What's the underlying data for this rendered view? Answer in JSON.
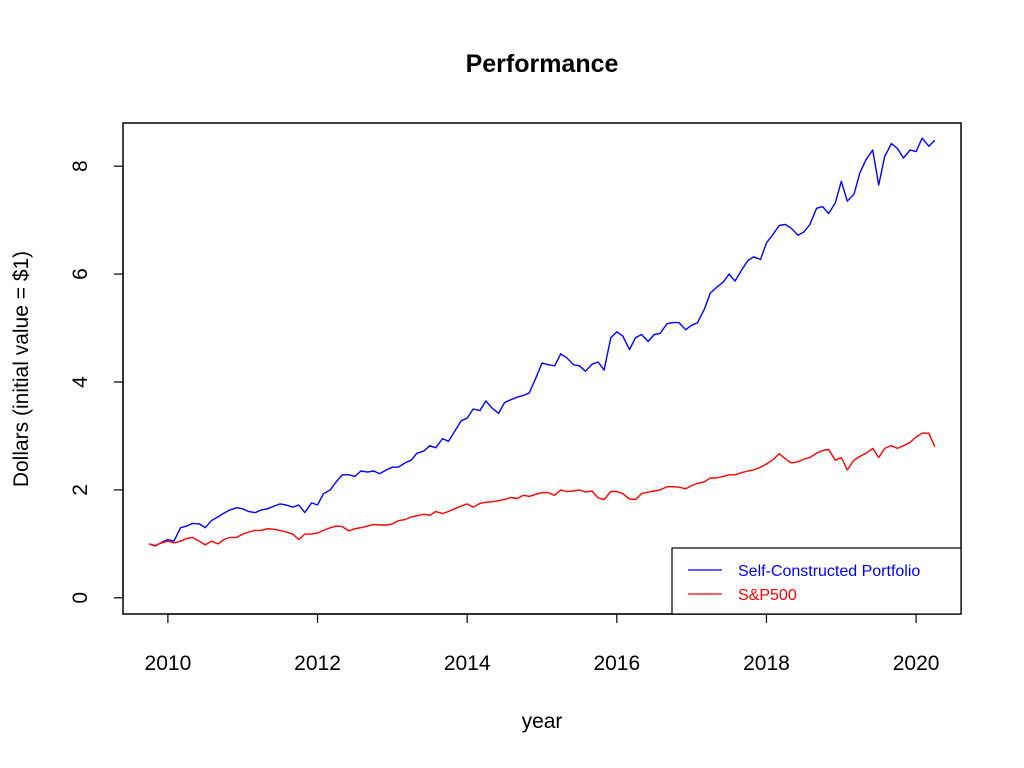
{
  "chart_data": {
    "type": "line",
    "title": "Performance",
    "xlabel": "year",
    "ylabel": "Dollars (initial value = $1)",
    "xlim": [
      2009.4,
      2020.6
    ],
    "ylim": [
      -0.3,
      8.8
    ],
    "x_ticks": [
      2010,
      2012,
      2014,
      2016,
      2018,
      2020
    ],
    "x_tick_labels": [
      "2010",
      "2012",
      "2014",
      "2016",
      "2018",
      "2020"
    ],
    "y_ticks": [
      0,
      2,
      4,
      6,
      8
    ],
    "y_tick_labels": [
      "0",
      "2",
      "4",
      "6",
      "8"
    ],
    "grid": false,
    "legend_position": "bottom-right",
    "series": [
      {
        "name": "Self-Constructed Portfolio",
        "color": "#0000ff",
        "points": [
          [
            2009.75,
            1.0
          ],
          [
            2009.83,
            0.96
          ],
          [
            2009.92,
            1.03
          ],
          [
            2010.0,
            1.08
          ],
          [
            2010.08,
            1.05
          ],
          [
            2010.17,
            1.3
          ],
          [
            2010.25,
            1.33
          ],
          [
            2010.33,
            1.38
          ],
          [
            2010.42,
            1.37
          ],
          [
            2010.5,
            1.3
          ],
          [
            2010.58,
            1.43
          ],
          [
            2010.67,
            1.5
          ],
          [
            2010.75,
            1.57
          ],
          [
            2010.83,
            1.63
          ],
          [
            2010.92,
            1.67
          ],
          [
            2011.0,
            1.65
          ],
          [
            2011.08,
            1.6
          ],
          [
            2011.17,
            1.58
          ],
          [
            2011.25,
            1.63
          ],
          [
            2011.33,
            1.65
          ],
          [
            2011.42,
            1.7
          ],
          [
            2011.5,
            1.74
          ],
          [
            2011.58,
            1.72
          ],
          [
            2011.67,
            1.68
          ],
          [
            2011.75,
            1.72
          ],
          [
            2011.83,
            1.58
          ],
          [
            2011.92,
            1.76
          ],
          [
            2012.0,
            1.72
          ],
          [
            2012.08,
            1.93
          ],
          [
            2012.17,
            2.0
          ],
          [
            2012.25,
            2.15
          ],
          [
            2012.33,
            2.28
          ],
          [
            2012.42,
            2.28
          ],
          [
            2012.5,
            2.25
          ],
          [
            2012.58,
            2.35
          ],
          [
            2012.67,
            2.33
          ],
          [
            2012.75,
            2.35
          ],
          [
            2012.83,
            2.3
          ],
          [
            2012.92,
            2.37
          ],
          [
            2013.0,
            2.42
          ],
          [
            2013.08,
            2.42
          ],
          [
            2013.17,
            2.5
          ],
          [
            2013.25,
            2.55
          ],
          [
            2013.33,
            2.68
          ],
          [
            2013.42,
            2.72
          ],
          [
            2013.5,
            2.82
          ],
          [
            2013.58,
            2.78
          ],
          [
            2013.67,
            2.95
          ],
          [
            2013.75,
            2.9
          ],
          [
            2013.83,
            3.08
          ],
          [
            2013.92,
            3.28
          ],
          [
            2014.0,
            3.33
          ],
          [
            2014.08,
            3.5
          ],
          [
            2014.17,
            3.47
          ],
          [
            2014.25,
            3.65
          ],
          [
            2014.33,
            3.52
          ],
          [
            2014.42,
            3.42
          ],
          [
            2014.5,
            3.62
          ],
          [
            2014.58,
            3.67
          ],
          [
            2014.67,
            3.72
          ],
          [
            2014.75,
            3.75
          ],
          [
            2014.83,
            3.8
          ],
          [
            2014.92,
            4.08
          ],
          [
            2015.0,
            4.35
          ],
          [
            2015.08,
            4.32
          ],
          [
            2015.17,
            4.3
          ],
          [
            2015.25,
            4.52
          ],
          [
            2015.33,
            4.45
          ],
          [
            2015.42,
            4.32
          ],
          [
            2015.5,
            4.3
          ],
          [
            2015.58,
            4.2
          ],
          [
            2015.67,
            4.33
          ],
          [
            2015.75,
            4.37
          ],
          [
            2015.83,
            4.22
          ],
          [
            2015.92,
            4.82
          ],
          [
            2016.0,
            4.93
          ],
          [
            2016.08,
            4.85
          ],
          [
            2016.17,
            4.6
          ],
          [
            2016.25,
            4.82
          ],
          [
            2016.33,
            4.88
          ],
          [
            2016.42,
            4.75
          ],
          [
            2016.5,
            4.88
          ],
          [
            2016.58,
            4.9
          ],
          [
            2016.67,
            5.08
          ],
          [
            2016.75,
            5.1
          ],
          [
            2016.83,
            5.1
          ],
          [
            2016.92,
            4.97
          ],
          [
            2017.0,
            5.05
          ],
          [
            2017.08,
            5.1
          ],
          [
            2017.17,
            5.35
          ],
          [
            2017.25,
            5.65
          ],
          [
            2017.33,
            5.75
          ],
          [
            2017.42,
            5.85
          ],
          [
            2017.5,
            6.0
          ],
          [
            2017.58,
            5.87
          ],
          [
            2017.67,
            6.08
          ],
          [
            2017.75,
            6.25
          ],
          [
            2017.83,
            6.32
          ],
          [
            2017.92,
            6.27
          ],
          [
            2018.0,
            6.58
          ],
          [
            2018.08,
            6.72
          ],
          [
            2018.17,
            6.9
          ],
          [
            2018.25,
            6.92
          ],
          [
            2018.33,
            6.85
          ],
          [
            2018.42,
            6.72
          ],
          [
            2018.5,
            6.78
          ],
          [
            2018.58,
            6.92
          ],
          [
            2018.67,
            7.22
          ],
          [
            2018.75,
            7.25
          ],
          [
            2018.83,
            7.12
          ],
          [
            2018.92,
            7.32
          ],
          [
            2019.0,
            7.72
          ],
          [
            2019.08,
            7.35
          ],
          [
            2019.17,
            7.48
          ],
          [
            2019.25,
            7.88
          ],
          [
            2019.33,
            8.12
          ],
          [
            2019.42,
            8.3
          ],
          [
            2019.5,
            7.65
          ],
          [
            2019.58,
            8.18
          ],
          [
            2019.67,
            8.42
          ],
          [
            2019.75,
            8.33
          ],
          [
            2019.83,
            8.15
          ],
          [
            2019.92,
            8.3
          ],
          [
            2020.0,
            8.27
          ],
          [
            2020.08,
            8.52
          ],
          [
            2020.17,
            8.37
          ],
          [
            2020.25,
            8.48
          ]
        ]
      },
      {
        "name": "S&P500",
        "color": "#ff0000",
        "points": [
          [
            2009.75,
            1.0
          ],
          [
            2009.83,
            0.97
          ],
          [
            2009.92,
            1.02
          ],
          [
            2010.0,
            1.05
          ],
          [
            2010.08,
            1.02
          ],
          [
            2010.17,
            1.05
          ],
          [
            2010.25,
            1.1
          ],
          [
            2010.33,
            1.12
          ],
          [
            2010.42,
            1.05
          ],
          [
            2010.5,
            0.98
          ],
          [
            2010.58,
            1.05
          ],
          [
            2010.67,
            1.0
          ],
          [
            2010.75,
            1.08
          ],
          [
            2010.83,
            1.12
          ],
          [
            2010.92,
            1.12
          ],
          [
            2011.0,
            1.18
          ],
          [
            2011.08,
            1.22
          ],
          [
            2011.17,
            1.25
          ],
          [
            2011.25,
            1.25
          ],
          [
            2011.33,
            1.28
          ],
          [
            2011.42,
            1.27
          ],
          [
            2011.5,
            1.25
          ],
          [
            2011.58,
            1.22
          ],
          [
            2011.67,
            1.18
          ],
          [
            2011.75,
            1.08
          ],
          [
            2011.83,
            1.18
          ],
          [
            2011.92,
            1.18
          ],
          [
            2012.0,
            1.2
          ],
          [
            2012.08,
            1.25
          ],
          [
            2012.17,
            1.3
          ],
          [
            2012.25,
            1.33
          ],
          [
            2012.33,
            1.32
          ],
          [
            2012.42,
            1.24
          ],
          [
            2012.5,
            1.28
          ],
          [
            2012.58,
            1.3
          ],
          [
            2012.67,
            1.33
          ],
          [
            2012.75,
            1.36
          ],
          [
            2012.83,
            1.35
          ],
          [
            2012.92,
            1.35
          ],
          [
            2013.0,
            1.37
          ],
          [
            2013.08,
            1.43
          ],
          [
            2013.17,
            1.45
          ],
          [
            2013.25,
            1.5
          ],
          [
            2013.33,
            1.52
          ],
          [
            2013.42,
            1.55
          ],
          [
            2013.5,
            1.53
          ],
          [
            2013.58,
            1.6
          ],
          [
            2013.67,
            1.56
          ],
          [
            2013.75,
            1.6
          ],
          [
            2013.83,
            1.65
          ],
          [
            2013.92,
            1.7
          ],
          [
            2014.0,
            1.74
          ],
          [
            2014.08,
            1.68
          ],
          [
            2014.17,
            1.75
          ],
          [
            2014.25,
            1.77
          ],
          [
            2014.33,
            1.78
          ],
          [
            2014.42,
            1.8
          ],
          [
            2014.5,
            1.82
          ],
          [
            2014.58,
            1.86
          ],
          [
            2014.67,
            1.84
          ],
          [
            2014.75,
            1.9
          ],
          [
            2014.83,
            1.88
          ],
          [
            2014.92,
            1.92
          ],
          [
            2015.0,
            1.95
          ],
          [
            2015.08,
            1.95
          ],
          [
            2015.17,
            1.9
          ],
          [
            2015.25,
            2.0
          ],
          [
            2015.33,
            1.97
          ],
          [
            2015.42,
            1.98
          ],
          [
            2015.5,
            2.0
          ],
          [
            2015.58,
            1.96
          ],
          [
            2015.67,
            1.98
          ],
          [
            2015.75,
            1.85
          ],
          [
            2015.83,
            1.82
          ],
          [
            2015.92,
            1.97
          ],
          [
            2016.0,
            1.97
          ],
          [
            2016.08,
            1.93
          ],
          [
            2016.17,
            1.83
          ],
          [
            2016.25,
            1.82
          ],
          [
            2016.33,
            1.93
          ],
          [
            2016.42,
            1.96
          ],
          [
            2016.5,
            1.98
          ],
          [
            2016.58,
            2.0
          ],
          [
            2016.67,
            2.06
          ],
          [
            2016.75,
            2.06
          ],
          [
            2016.83,
            2.05
          ],
          [
            2016.92,
            2.02
          ],
          [
            2017.0,
            2.08
          ],
          [
            2017.08,
            2.12
          ],
          [
            2017.17,
            2.15
          ],
          [
            2017.25,
            2.22
          ],
          [
            2017.33,
            2.22
          ],
          [
            2017.42,
            2.25
          ],
          [
            2017.5,
            2.28
          ],
          [
            2017.58,
            2.28
          ],
          [
            2017.67,
            2.32
          ],
          [
            2017.75,
            2.35
          ],
          [
            2017.83,
            2.37
          ],
          [
            2017.92,
            2.42
          ],
          [
            2018.0,
            2.48
          ],
          [
            2018.08,
            2.55
          ],
          [
            2018.17,
            2.67
          ],
          [
            2018.25,
            2.58
          ],
          [
            2018.33,
            2.5
          ],
          [
            2018.42,
            2.52
          ],
          [
            2018.5,
            2.57
          ],
          [
            2018.58,
            2.6
          ],
          [
            2018.67,
            2.68
          ],
          [
            2018.75,
            2.73
          ],
          [
            2018.83,
            2.75
          ],
          [
            2018.92,
            2.55
          ],
          [
            2019.0,
            2.6
          ],
          [
            2019.08,
            2.37
          ],
          [
            2019.17,
            2.55
          ],
          [
            2019.25,
            2.62
          ],
          [
            2019.33,
            2.68
          ],
          [
            2019.42,
            2.77
          ],
          [
            2019.5,
            2.6
          ],
          [
            2019.58,
            2.77
          ],
          [
            2019.67,
            2.82
          ],
          [
            2019.75,
            2.77
          ],
          [
            2019.83,
            2.82
          ],
          [
            2019.92,
            2.88
          ],
          [
            2020.0,
            2.98
          ],
          [
            2020.08,
            3.05
          ],
          [
            2020.17,
            3.05
          ],
          [
            2020.25,
            2.8
          ]
        ]
      }
    ]
  }
}
